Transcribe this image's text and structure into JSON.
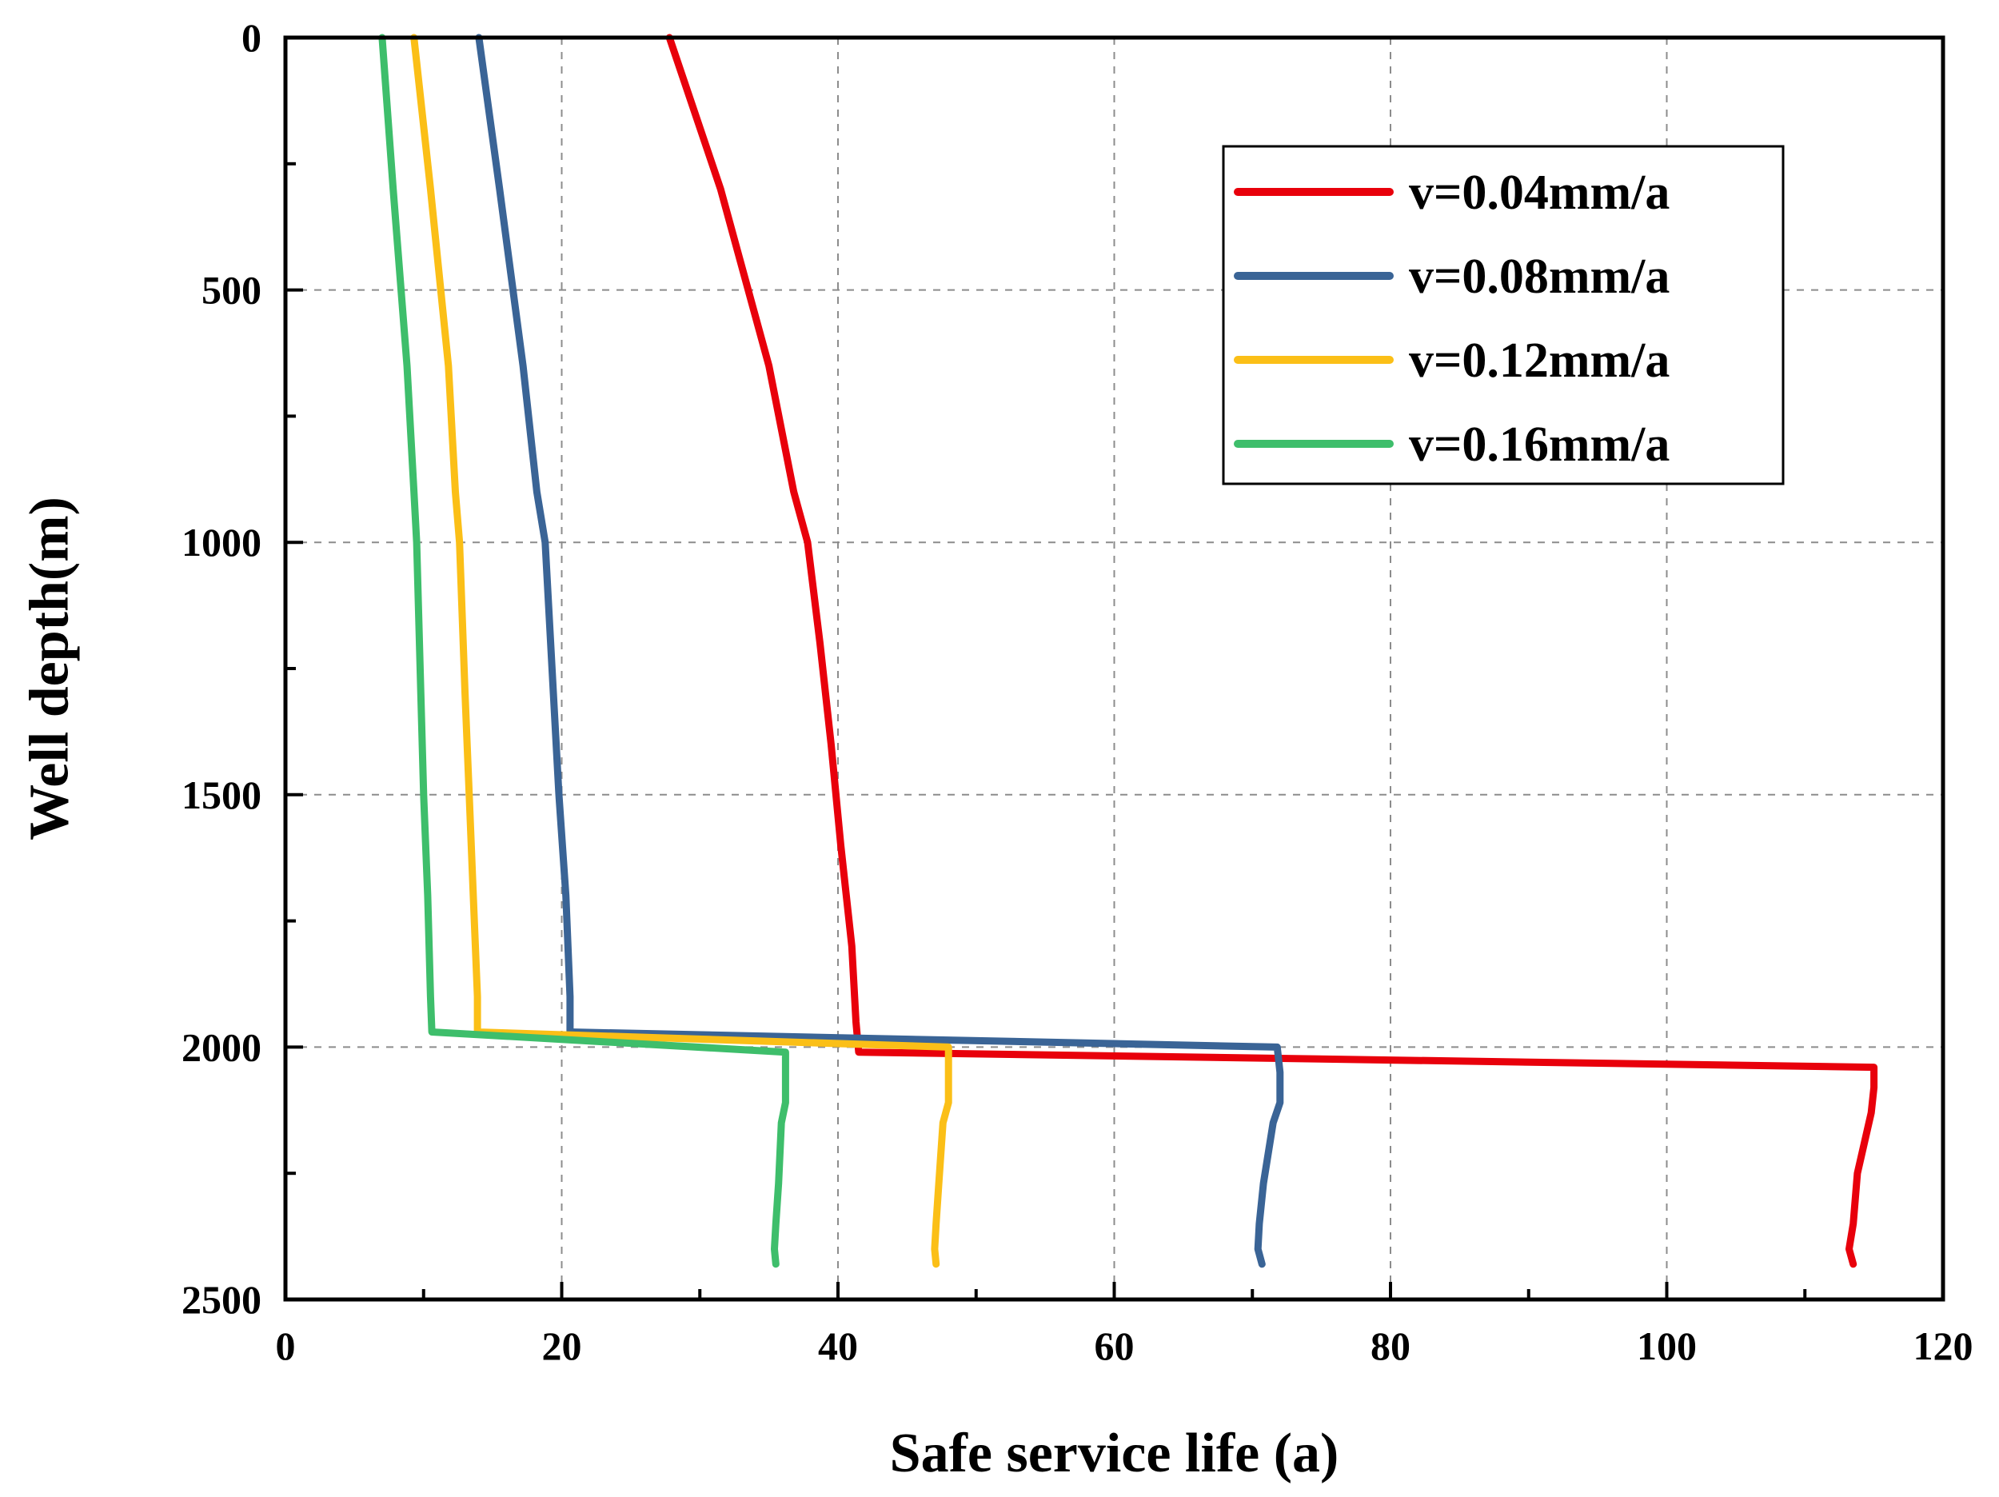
{
  "chart_data": {
    "type": "line",
    "xlabel": "Safe service life (a)",
    "ylabel": "Well depth(m)",
    "xlim": [
      0,
      120
    ],
    "ylim": [
      0,
      2500
    ],
    "y_inverted": true,
    "grid": true,
    "legend_position": "top-right",
    "x_ticks": [
      0,
      20,
      40,
      60,
      80,
      100,
      120
    ],
    "y_ticks": [
      0,
      500,
      1000,
      1500,
      2000,
      2500
    ],
    "series": [
      {
        "name": "v=0.04mm/a",
        "color": "#e8000b",
        "points": [
          [
            27.8,
            0
          ],
          [
            31.5,
            300
          ],
          [
            35.0,
            650
          ],
          [
            36.8,
            900
          ],
          [
            37.8,
            1000
          ],
          [
            38.7,
            1200
          ],
          [
            39.5,
            1400
          ],
          [
            40.2,
            1600
          ],
          [
            41.0,
            1800
          ],
          [
            41.3,
            1950
          ],
          [
            41.5,
            2010
          ],
          [
            115.0,
            2040
          ],
          [
            115.0,
            2080
          ],
          [
            114.8,
            2130
          ],
          [
            113.8,
            2250
          ],
          [
            113.5,
            2350
          ],
          [
            113.2,
            2400
          ],
          [
            113.5,
            2430
          ]
        ]
      },
      {
        "name": "v=0.08mm/a",
        "color": "#3a6496",
        "points": [
          [
            14.0,
            0
          ],
          [
            15.5,
            300
          ],
          [
            17.2,
            650
          ],
          [
            18.2,
            900
          ],
          [
            18.8,
            1000
          ],
          [
            19.4,
            1300
          ],
          [
            19.8,
            1500
          ],
          [
            20.3,
            1700
          ],
          [
            20.6,
            1900
          ],
          [
            20.6,
            1970
          ],
          [
            71.8,
            2000
          ],
          [
            72.0,
            2050
          ],
          [
            72.0,
            2110
          ],
          [
            71.5,
            2150
          ],
          [
            70.8,
            2270
          ],
          [
            70.5,
            2350
          ],
          [
            70.4,
            2400
          ],
          [
            70.7,
            2430
          ]
        ]
      },
      {
        "name": "v=0.12mm/a",
        "color": "#fbbf17",
        "points": [
          [
            9.3,
            0
          ],
          [
            10.5,
            300
          ],
          [
            11.8,
            650
          ],
          [
            12.3,
            900
          ],
          [
            12.6,
            1000
          ],
          [
            13.0,
            1300
          ],
          [
            13.3,
            1500
          ],
          [
            13.6,
            1700
          ],
          [
            13.9,
            1900
          ],
          [
            13.9,
            1970
          ],
          [
            48.0,
            2000
          ],
          [
            48.0,
            2050
          ],
          [
            48.0,
            2110
          ],
          [
            47.6,
            2150
          ],
          [
            47.3,
            2270
          ],
          [
            47.1,
            2350
          ],
          [
            47.0,
            2400
          ],
          [
            47.1,
            2430
          ]
        ]
      },
      {
        "name": "v=0.16mm/a",
        "color": "#3ebe6b",
        "points": [
          [
            7.0,
            0
          ],
          [
            7.8,
            300
          ],
          [
            8.8,
            650
          ],
          [
            9.3,
            900
          ],
          [
            9.5,
            1000
          ],
          [
            9.8,
            1300
          ],
          [
            10.0,
            1500
          ],
          [
            10.3,
            1700
          ],
          [
            10.5,
            1900
          ],
          [
            10.6,
            1970
          ],
          [
            36.2,
            2010
          ],
          [
            36.2,
            2060
          ],
          [
            36.2,
            2110
          ],
          [
            35.9,
            2150
          ],
          [
            35.7,
            2270
          ],
          [
            35.5,
            2350
          ],
          [
            35.4,
            2400
          ],
          [
            35.5,
            2430
          ]
        ]
      }
    ]
  }
}
